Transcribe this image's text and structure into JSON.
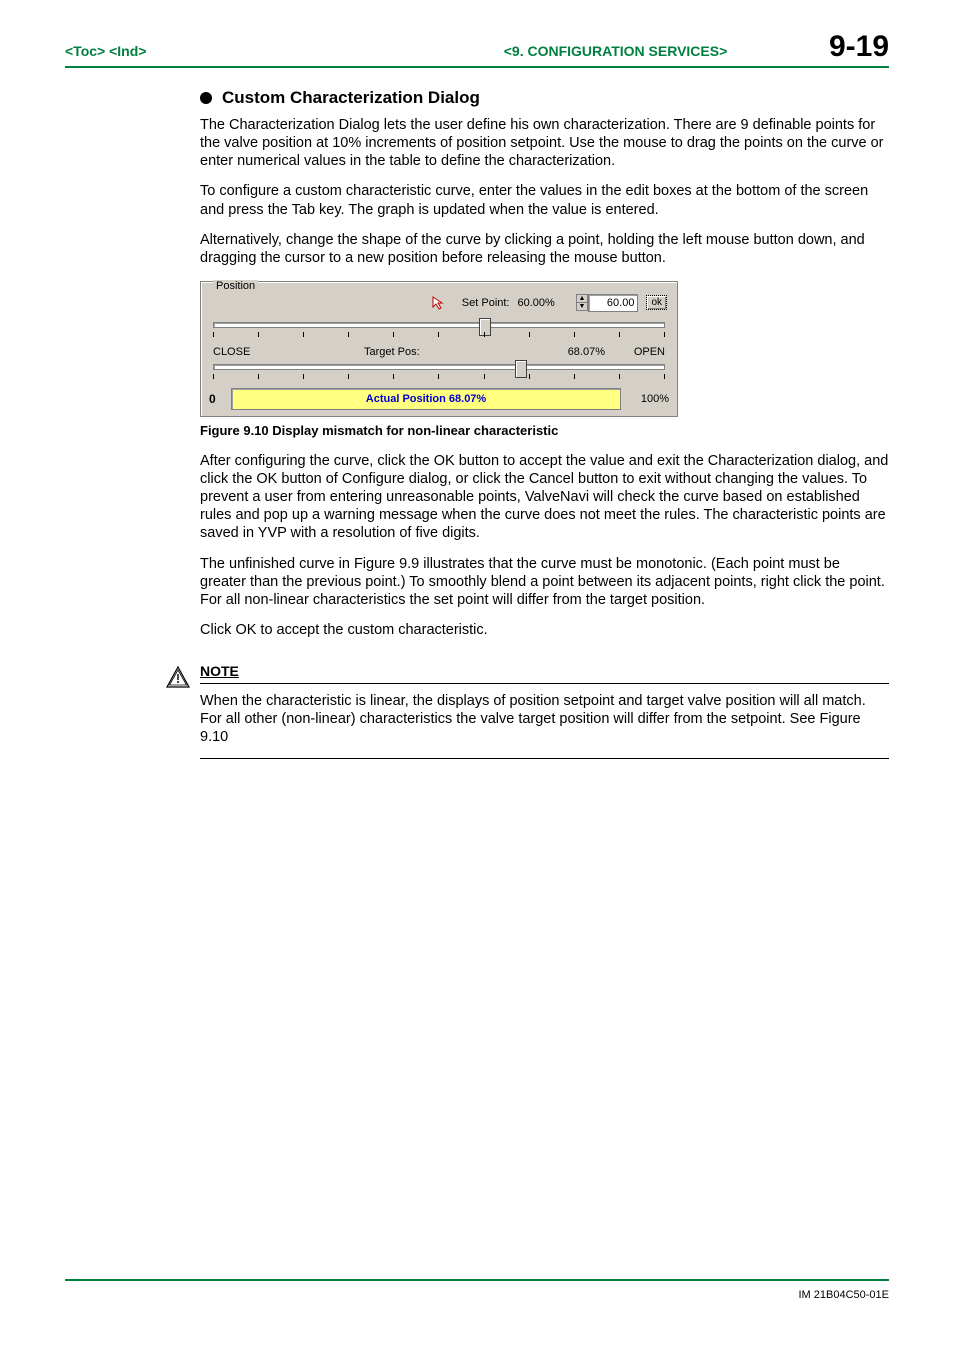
{
  "header": {
    "toc": "<Toc>",
    "ind": "<Ind>",
    "section": "<9.  CONFIGURATION SERVICES>",
    "page_number": "9-19"
  },
  "section": {
    "title": "Custom Characterization Dialog",
    "paragraphs": [
      "The Characterization Dialog lets the user define his own characterization.  There are 9 definable points for the valve position at 10% increments of position setpoint.  Use the mouse to drag the points on the curve or enter numerical values in the table to define the characterization.",
      "To configure a custom characteristic curve, enter the values in the edit boxes at the bottom of the screen and press the Tab key.  The graph is updated when the value is entered.",
      "Alternatively, change the shape of the curve by clicking a point, holding the left mouse button down, and dragging the cursor to a new position before releasing the mouse button."
    ],
    "after_figure_paragraphs": [
      "After configuring the curve, click the OK button to accept the value and exit the Characterization dialog, and click the OK button of Configure dialog, or click the Cancel button to exit without changing the values.  To prevent a user from entering unreasonable points, ValveNavi will check the curve based on established rules and pop up a warning message when the curve does not meet the rules.  The characteristic points are saved in YVP with a resolution of five digits.",
      "The unfinished curve in Figure 9.9 illustrates that the curve must be monotonic.  (Each point must be greater than the previous point.)  To smoothly blend a point between its adjacent points, right click the point.  For all non-linear characteristics the set point will differ from the target position.",
      "Click OK to accept the custom characteristic."
    ]
  },
  "figure": {
    "caption": "Figure 9.10 Display mismatch for non-linear characteristic",
    "dialog": {
      "groupbox_label": "Position",
      "setpoint_label": "Set Point:",
      "setpoint_value_pct": "60.00%",
      "spinner_value": "60.00",
      "ok_label": "ok",
      "close_label": "CLOSE",
      "open_label": "OPEN",
      "target_pos_label": "Target Pos:",
      "target_pos_value": "68.07%",
      "actual_left": "0",
      "actual_bar_text": "Actual Position 68.07%",
      "actual_right": "100%",
      "setpoint_slider_percent": 60,
      "targetpos_slider_percent": 68,
      "tick_count": 11,
      "colors": {
        "dialog_bg": "#d4d0c8",
        "bar_bg": "#ffff80",
        "bar_text": "#0000d0",
        "border": "#808080"
      }
    }
  },
  "note": {
    "label": "NOTE",
    "text": "When the characteristic is linear, the displays of position setpoint and target valve position will all match.  For all other (non-linear) characteristics the valve target position will differ from the setpoint.  See Figure 9.10"
  },
  "footer": {
    "doc_id": "IM 21B04C50-01E"
  }
}
